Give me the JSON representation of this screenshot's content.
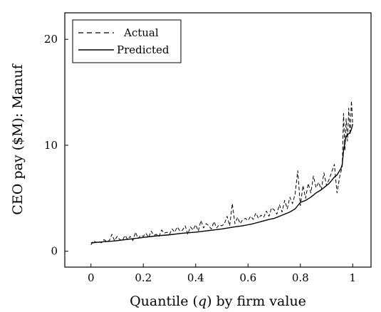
{
  "chart_data": {
    "type": "line",
    "xlabel": "Quantile (q) by firm value",
    "ylabel": "CEO pay ($M): Manuf",
    "xlim": [
      -0.1,
      1.07
    ],
    "ylim": [
      -1.5,
      22.5
    ],
    "xticks": [
      0,
      0.2,
      0.4,
      0.6,
      0.8,
      1
    ],
    "xtick_labels": [
      "0",
      "0.2",
      "0.4",
      "0.6",
      "0.8",
      "1"
    ],
    "yticks": [
      0,
      10,
      20
    ],
    "ytick_labels": [
      "0",
      "10",
      "20"
    ],
    "grid": false,
    "legend_position": "top-left",
    "series": [
      {
        "name": "Actual",
        "style": "dashed",
        "color": "#000000",
        "x": [
          0.0,
          0.01,
          0.02,
          0.03,
          0.04,
          0.05,
          0.06,
          0.07,
          0.08,
          0.09,
          0.1,
          0.11,
          0.12,
          0.13,
          0.14,
          0.15,
          0.16,
          0.17,
          0.18,
          0.19,
          0.2,
          0.21,
          0.22,
          0.23,
          0.24,
          0.25,
          0.26,
          0.27,
          0.28,
          0.29,
          0.3,
          0.31,
          0.32,
          0.33,
          0.34,
          0.35,
          0.36,
          0.37,
          0.38,
          0.39,
          0.4,
          0.41,
          0.42,
          0.43,
          0.44,
          0.45,
          0.46,
          0.47,
          0.48,
          0.49,
          0.5,
          0.51,
          0.52,
          0.53,
          0.54,
          0.55,
          0.56,
          0.57,
          0.58,
          0.59,
          0.6,
          0.61,
          0.62,
          0.63,
          0.64,
          0.65,
          0.66,
          0.67,
          0.68,
          0.69,
          0.7,
          0.71,
          0.72,
          0.73,
          0.74,
          0.75,
          0.76,
          0.77,
          0.78,
          0.79,
          0.8,
          0.81,
          0.82,
          0.83,
          0.84,
          0.85,
          0.86,
          0.87,
          0.88,
          0.89,
          0.9,
          0.91,
          0.92,
          0.93,
          0.94,
          0.95,
          0.96,
          0.965,
          0.97,
          0.975,
          0.98,
          0.985,
          0.99,
          0.995,
          1.0
        ],
        "values": [
          0.6,
          1.0,
          0.8,
          0.9,
          0.8,
          1.1,
          0.9,
          1.0,
          1.6,
          1.0,
          1.4,
          1.1,
          1.0,
          1.5,
          1.1,
          1.4,
          1.0,
          1.8,
          1.2,
          1.5,
          1.4,
          1.7,
          1.3,
          1.9,
          1.5,
          1.6,
          1.4,
          2.0,
          1.7,
          1.8,
          1.6,
          2.1,
          1.8,
          2.3,
          1.9,
          2.0,
          2.4,
          1.6,
          2.3,
          2.0,
          2.5,
          1.9,
          2.9,
          2.2,
          2.6,
          2.4,
          2.1,
          2.8,
          2.2,
          2.5,
          2.4,
          2.6,
          3.3,
          2.4,
          4.5,
          2.6,
          3.2,
          2.6,
          3.0,
          3.1,
          2.9,
          3.3,
          3.0,
          3.6,
          3.1,
          3.4,
          3.2,
          3.8,
          3.3,
          4.1,
          3.9,
          3.5,
          4.4,
          3.7,
          4.8,
          4.0,
          5.1,
          4.5,
          5.4,
          7.6,
          4.3,
          6.2,
          5.0,
          6.4,
          5.5,
          7.1,
          6.0,
          6.5,
          5.8,
          7.4,
          6.2,
          6.8,
          7.5,
          8.2,
          5.5,
          7.0,
          8.0,
          13.0,
          9.5,
          12.5,
          10.4,
          13.5,
          11.0,
          14.2,
          12.0
        ],
        "extra_points": []
      },
      {
        "name": "Predicted",
        "style": "solid",
        "color": "#000000",
        "x": [
          0.0,
          0.01,
          0.02,
          0.03,
          0.05,
          0.08,
          0.1,
          0.15,
          0.2,
          0.25,
          0.3,
          0.35,
          0.4,
          0.45,
          0.5,
          0.55,
          0.58,
          0.6,
          0.62,
          0.65,
          0.68,
          0.7,
          0.72,
          0.74,
          0.76,
          0.78,
          0.79,
          0.8,
          0.82,
          0.84,
          0.86,
          0.88,
          0.9,
          0.91,
          0.92,
          0.93,
          0.94,
          0.945,
          0.95,
          0.955,
          0.96,
          0.965,
          0.97,
          0.975,
          0.98,
          0.985,
          0.99,
          0.995,
          1.0
        ],
        "values": [
          0.8,
          0.8,
          0.85,
          0.85,
          0.9,
          0.95,
          1.0,
          1.15,
          1.3,
          1.45,
          1.55,
          1.7,
          1.8,
          1.95,
          2.1,
          2.3,
          2.4,
          2.5,
          2.6,
          2.8,
          3.0,
          3.1,
          3.3,
          3.5,
          3.7,
          4.0,
          4.3,
          4.6,
          4.8,
          5.1,
          5.5,
          5.8,
          6.2,
          6.4,
          6.7,
          7.0,
          7.2,
          7.4,
          7.6,
          7.8,
          8.2,
          9.5,
          10.3,
          10.8,
          11.0,
          11.1,
          11.2,
          11.5,
          12.0
        ]
      }
    ]
  }
}
